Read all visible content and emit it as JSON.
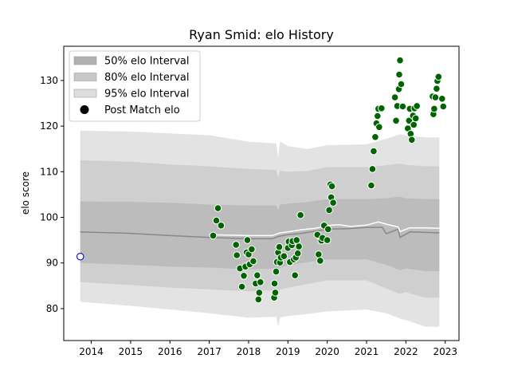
{
  "chart_data": {
    "type": "scatter",
    "title": "Ryan Smid: elo History",
    "xlabel": "",
    "ylabel": "elo score",
    "xlim": [
      2013.3,
      2023.35
    ],
    "ylim": [
      73,
      137.5
    ],
    "x_ticks": [
      {
        "value": 2014,
        "label": "2014"
      },
      {
        "value": 2015,
        "label": "2015"
      },
      {
        "value": 2016,
        "label": "2016"
      },
      {
        "value": 2017,
        "label": "2017"
      },
      {
        "value": 2018,
        "label": "2018"
      },
      {
        "value": 2019,
        "label": "2019"
      },
      {
        "value": 2020,
        "label": "2020"
      },
      {
        "value": 2021,
        "label": "2021"
      },
      {
        "value": 2022,
        "label": "2022"
      },
      {
        "value": 2023,
        "label": "2023"
      }
    ],
    "y_ticks": [
      {
        "value": 80,
        "label": "80"
      },
      {
        "value": 90,
        "label": "90"
      },
      {
        "value": 100,
        "label": "100"
      },
      {
        "value": 110,
        "label": "110"
      },
      {
        "value": 120,
        "label": "120"
      },
      {
        "value": 130,
        "label": "130"
      }
    ],
    "grid": false,
    "legend_position": "upper-left",
    "legend": [
      {
        "key": "band50",
        "label": "50% elo Interval"
      },
      {
        "key": "band80",
        "label": "80% elo Interval"
      },
      {
        "key": "band95",
        "label": "95% elo Interval"
      },
      {
        "key": "points",
        "label": "Post Match elo"
      }
    ],
    "colors": {
      "band50": "#bcbcbc",
      "band80": "#cfcfcf",
      "band95": "#e3e3e3",
      "mean_line": "#888888",
      "recent_line": "#ffffff",
      "point_fill": "#006400",
      "point_edge": "#ffffff",
      "initial_fill": "#ffffff",
      "initial_edge": "#0000cc"
    },
    "initial_point": {
      "x": 2013.72,
      "y": 91.4
    },
    "mean_line": [
      [
        2013.72,
        96.8
      ],
      [
        2015.0,
        96.5
      ],
      [
        2016.0,
        96.0
      ],
      [
        2017.0,
        95.6
      ],
      [
        2018.0,
        95.3
      ],
      [
        2018.6,
        95.3
      ],
      [
        2018.75,
        95.8
      ],
      [
        2019.0,
        96.2
      ],
      [
        2019.35,
        96.5
      ],
      [
        2019.7,
        97.0
      ],
      [
        2020.0,
        97.4
      ],
      [
        2020.5,
        97.5
      ],
      [
        2021.0,
        97.8
      ],
      [
        2021.4,
        97.8
      ],
      [
        2021.5,
        96.4
      ],
      [
        2021.8,
        97.4
      ],
      [
        2021.85,
        95.6
      ],
      [
        2022.1,
        96.8
      ],
      [
        2022.5,
        96.7
      ],
      [
        2022.85,
        96.6
      ]
    ],
    "recent_line": [
      [
        2017.0,
        96.2
      ],
      [
        2018.0,
        96.0
      ],
      [
        2018.6,
        96.0
      ],
      [
        2018.8,
        96.6
      ],
      [
        2019.0,
        96.8
      ],
      [
        2019.35,
        97.3
      ],
      [
        2019.7,
        97.6
      ],
      [
        2020.0,
        98.2
      ],
      [
        2020.3,
        98.4
      ],
      [
        2020.6,
        98.0
      ],
      [
        2021.0,
        98.3
      ],
      [
        2021.3,
        99.0
      ],
      [
        2021.5,
        98.5
      ],
      [
        2021.8,
        97.9
      ],
      [
        2021.85,
        96.9
      ],
      [
        2022.1,
        97.7
      ],
      [
        2022.5,
        97.7
      ],
      [
        2022.85,
        97.6
      ]
    ],
    "bands": {
      "band95": {
        "x": [
          2013.72,
          2015.0,
          2016.0,
          2017.0,
          2018.0,
          2018.7,
          2018.75,
          2018.8,
          2019.0,
          2019.5,
          2020.0,
          2021.0,
          2021.5,
          2021.85,
          2022.0,
          2022.5,
          2022.85
        ],
        "upper": [
          119.0,
          118.8,
          118.4,
          118.0,
          116.6,
          116.2,
          113.0,
          116.6,
          115.6,
          115.0,
          115.8,
          116.0,
          117.2,
          118.2,
          118.0,
          117.5,
          117.5
        ],
        "lower": [
          81.5,
          80.6,
          79.8,
          79.0,
          78.0,
          78.2,
          76.0,
          78.0,
          78.4,
          78.8,
          79.4,
          79.8,
          79.0,
          77.8,
          77.5,
          76.0,
          76.0
        ]
      },
      "band80": {
        "x": [
          2013.72,
          2015.0,
          2016.0,
          2017.0,
          2018.0,
          2018.7,
          2018.75,
          2018.8,
          2019.0,
          2019.5,
          2020.0,
          2021.0,
          2021.5,
          2021.85,
          2022.0,
          2022.5,
          2022.85
        ],
        "upper": [
          112.5,
          112.2,
          111.6,
          111.2,
          110.6,
          110.4,
          108.8,
          110.2,
          110.0,
          110.2,
          111.0,
          111.0,
          111.4,
          111.8,
          111.5,
          111.2,
          111.2
        ],
        "lower": [
          85.8,
          85.2,
          84.6,
          84.2,
          83.8,
          84.0,
          82.8,
          84.2,
          84.6,
          85.4,
          86.2,
          86.2,
          84.4,
          83.2,
          83.6,
          82.4,
          82.4
        ]
      },
      "band50": {
        "x": [
          2013.72,
          2015.0,
          2016.0,
          2017.0,
          2018.0,
          2018.7,
          2018.75,
          2018.8,
          2019.0,
          2019.5,
          2020.0,
          2021.0,
          2021.5,
          2021.85,
          2022.0,
          2022.5,
          2022.85
        ],
        "upper": [
          103.5,
          103.4,
          103.2,
          102.8,
          102.6,
          102.6,
          101.6,
          102.8,
          103.0,
          103.4,
          104.0,
          104.0,
          104.2,
          104.5,
          104.2,
          104.0,
          104.0
        ],
        "lower": [
          90.0,
          89.6,
          89.2,
          89.0,
          88.6,
          88.8,
          88.2,
          89.0,
          89.5,
          90.2,
          90.8,
          90.8,
          89.6,
          88.4,
          88.8,
          88.2,
          88.2
        ]
      }
    },
    "points": [
      {
        "x": 2017.1,
        "y": 96.0
      },
      {
        "x": 2017.18,
        "y": 99.3
      },
      {
        "x": 2017.22,
        "y": 102.0
      },
      {
        "x": 2017.3,
        "y": 98.2
      },
      {
        "x": 2017.68,
        "y": 94.0
      },
      {
        "x": 2017.7,
        "y": 91.7
      },
      {
        "x": 2017.78,
        "y": 88.8
      },
      {
        "x": 2017.83,
        "y": 84.8
      },
      {
        "x": 2017.88,
        "y": 87.2
      },
      {
        "x": 2017.92,
        "y": 89.2
      },
      {
        "x": 2017.95,
        "y": 92.3
      },
      {
        "x": 2017.97,
        "y": 95.0
      },
      {
        "x": 2018.0,
        "y": 91.9
      },
      {
        "x": 2018.03,
        "y": 89.7
      },
      {
        "x": 2018.08,
        "y": 93.0
      },
      {
        "x": 2018.12,
        "y": 90.4
      },
      {
        "x": 2018.18,
        "y": 85.5
      },
      {
        "x": 2018.22,
        "y": 87.3
      },
      {
        "x": 2018.25,
        "y": 82.0
      },
      {
        "x": 2018.27,
        "y": 83.5
      },
      {
        "x": 2018.3,
        "y": 85.8
      },
      {
        "x": 2018.65,
        "y": 82.4
      },
      {
        "x": 2018.66,
        "y": 85.5
      },
      {
        "x": 2018.68,
        "y": 83.5
      },
      {
        "x": 2018.7,
        "y": 88.1
      },
      {
        "x": 2018.72,
        "y": 90.2
      },
      {
        "x": 2018.75,
        "y": 92.3
      },
      {
        "x": 2018.78,
        "y": 93.5
      },
      {
        "x": 2018.8,
        "y": 90.1
      },
      {
        "x": 2018.82,
        "y": 91.2
      },
      {
        "x": 2018.9,
        "y": 91.5
      },
      {
        "x": 2019.0,
        "y": 93.3
      },
      {
        "x": 2019.02,
        "y": 94.7
      },
      {
        "x": 2019.05,
        "y": 90.2
      },
      {
        "x": 2019.1,
        "y": 93.9
      },
      {
        "x": 2019.12,
        "y": 94.8
      },
      {
        "x": 2019.15,
        "y": 90.8
      },
      {
        "x": 2019.18,
        "y": 87.3
      },
      {
        "x": 2019.2,
        "y": 91.2
      },
      {
        "x": 2019.22,
        "y": 95.0
      },
      {
        "x": 2019.25,
        "y": 92.1
      },
      {
        "x": 2019.28,
        "y": 93.6
      },
      {
        "x": 2019.32,
        "y": 100.5
      },
      {
        "x": 2019.75,
        "y": 96.2
      },
      {
        "x": 2019.78,
        "y": 91.9
      },
      {
        "x": 2019.82,
        "y": 90.5
      },
      {
        "x": 2019.85,
        "y": 94.9
      },
      {
        "x": 2019.88,
        "y": 95.5
      },
      {
        "x": 2019.92,
        "y": 98.2
      },
      {
        "x": 2020.0,
        "y": 95.0
      },
      {
        "x": 2020.02,
        "y": 97.4
      },
      {
        "x": 2020.05,
        "y": 101.6
      },
      {
        "x": 2020.08,
        "y": 107.2
      },
      {
        "x": 2020.1,
        "y": 104.4
      },
      {
        "x": 2020.12,
        "y": 106.8
      },
      {
        "x": 2020.15,
        "y": 103.2
      },
      {
        "x": 2021.12,
        "y": 107.0
      },
      {
        "x": 2021.15,
        "y": 110.6
      },
      {
        "x": 2021.18,
        "y": 114.5
      },
      {
        "x": 2021.22,
        "y": 117.6
      },
      {
        "x": 2021.25,
        "y": 120.6
      },
      {
        "x": 2021.28,
        "y": 122.2
      },
      {
        "x": 2021.3,
        "y": 123.8
      },
      {
        "x": 2021.32,
        "y": 119.8
      },
      {
        "x": 2021.38,
        "y": 123.9
      },
      {
        "x": 2021.72,
        "y": 126.3
      },
      {
        "x": 2021.75,
        "y": 121.2
      },
      {
        "x": 2021.78,
        "y": 124.4
      },
      {
        "x": 2021.82,
        "y": 128.1
      },
      {
        "x": 2021.83,
        "y": 131.3
      },
      {
        "x": 2021.85,
        "y": 134.4
      },
      {
        "x": 2021.88,
        "y": 129.2
      },
      {
        "x": 2021.92,
        "y": 124.3
      },
      {
        "x": 2022.05,
        "y": 119.5
      },
      {
        "x": 2022.08,
        "y": 121.2
      },
      {
        "x": 2022.1,
        "y": 123.8
      },
      {
        "x": 2022.12,
        "y": 118.3
      },
      {
        "x": 2022.15,
        "y": 117.0
      },
      {
        "x": 2022.18,
        "y": 122.3
      },
      {
        "x": 2022.2,
        "y": 120.3
      },
      {
        "x": 2022.22,
        "y": 123.9
      },
      {
        "x": 2022.25,
        "y": 121.7
      },
      {
        "x": 2022.28,
        "y": 124.4
      },
      {
        "x": 2022.68,
        "y": 126.5
      },
      {
        "x": 2022.7,
        "y": 122.6
      },
      {
        "x": 2022.72,
        "y": 123.8
      },
      {
        "x": 2022.75,
        "y": 126.3
      },
      {
        "x": 2022.78,
        "y": 128.2
      },
      {
        "x": 2022.8,
        "y": 129.9
      },
      {
        "x": 2022.83,
        "y": 130.8
      },
      {
        "x": 2022.92,
        "y": 126.0
      },
      {
        "x": 2022.95,
        "y": 124.3
      }
    ]
  }
}
